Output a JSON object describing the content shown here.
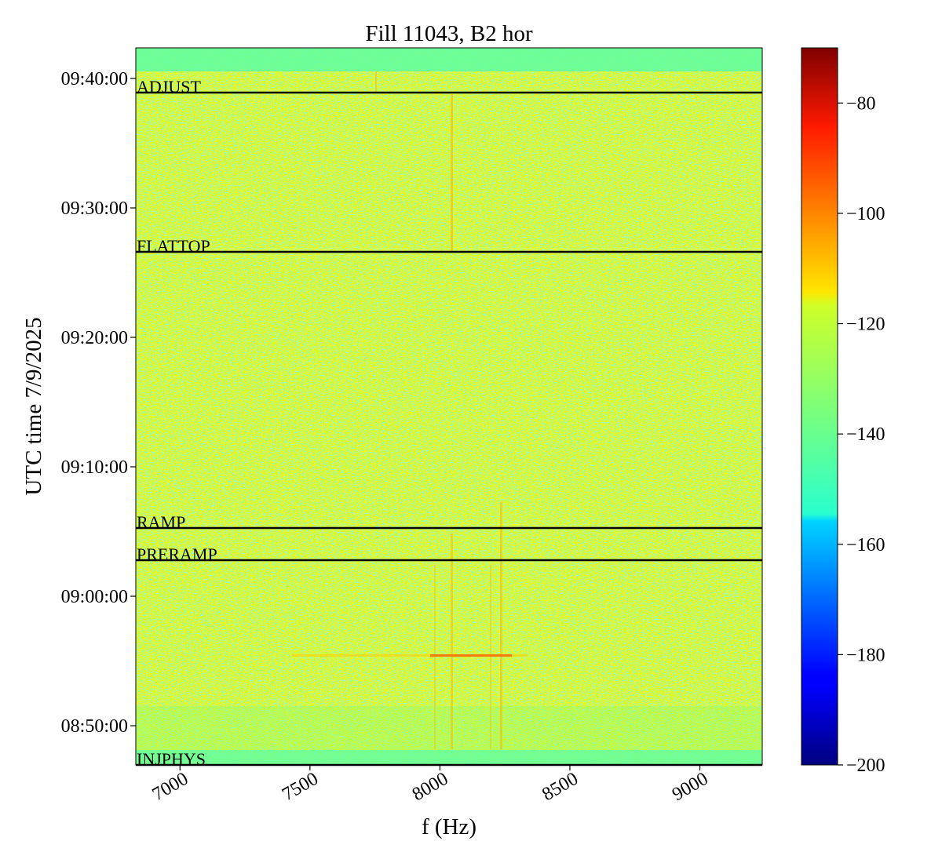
{
  "chart_data": {
    "type": "heatmap",
    "title": "Fill 11043, B2 hor",
    "xlabel": "f (Hz)",
    "ylabel": "UTC time 7/9/2025",
    "xlim": [
      6830,
      9240
    ],
    "x_ticks": [
      7000,
      7500,
      8000,
      8500,
      9000
    ],
    "x_tick_labels": [
      "7000",
      "7500",
      "8000",
      "8500",
      "9000"
    ],
    "y_ticks_min": [
      570,
      580,
      590,
      600,
      610,
      620
    ],
    "y_tick_labels": [
      "08:50:00",
      "09:00:00",
      "09:10:00",
      "09:20:00",
      "09:30:00",
      "09:40:00"
    ],
    "colormap": "jet",
    "colorbar": {
      "range": [
        -200,
        -70
      ],
      "ticks": [
        -200,
        -180,
        -160,
        -140,
        -120,
        -100,
        -80
      ],
      "tick_labels": [
        "−200",
        "−180",
        "−160",
        "−140",
        "−120",
        "−100",
        "−80"
      ]
    },
    "background_level_db": -122,
    "phase_markers": [
      {
        "label": "ADJUST"
      },
      {
        "label": "FLATTOP"
      },
      {
        "label": "RAMP"
      },
      {
        "label": "PRERAMP"
      },
      {
        "label": "INJPHYS"
      }
    ]
  }
}
